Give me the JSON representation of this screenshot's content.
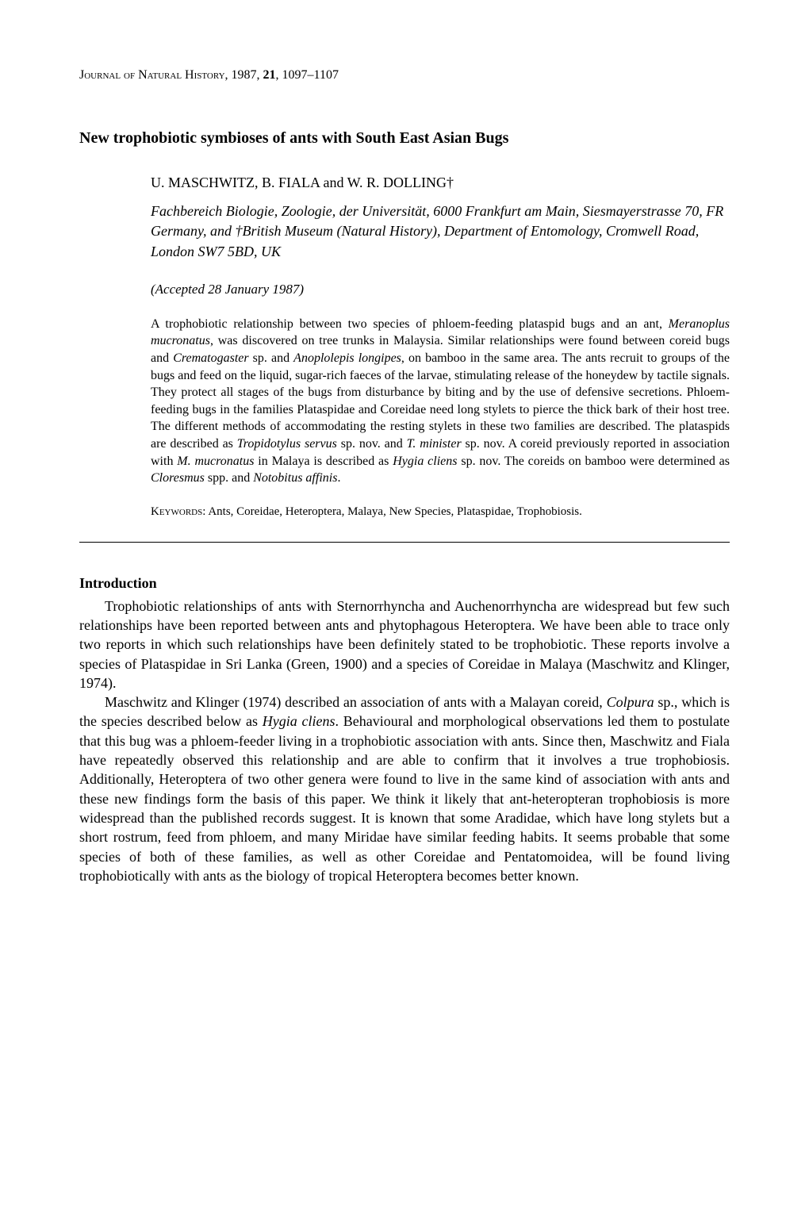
{
  "journal": {
    "name_smallcaps": "Journal of Natural History",
    "year": "1987",
    "volume": "21",
    "pages": "1097–1107"
  },
  "title": "New trophobiotic symbioses of ants with South East Asian Bugs",
  "authors": "U. MASCHWITZ, B. FIALA and W. R. DOLLING†",
  "affiliation": "Fachbereich Biologie, Zoologie, der Universität, 6000 Frankfurt am Main, Siesmayerstrasse 70, FR Germany, and †British Museum (Natural History), Department of Entomology, Cromwell Road, London SW7 5BD, UK",
  "accepted": "(Accepted 28 January 1987)",
  "abstract": "A trophobiotic relationship between two species of phloem-feeding plataspid bugs and an ant, Meranoplus mucronatus, was discovered on tree trunks in Malaysia. Similar relationships were found between coreid bugs and Crematogaster sp. and Anoplolepis longipes, on bamboo in the same area. The ants recruit to groups of the bugs and feed on the liquid, sugar-rich faeces of the larvae, stimulating release of the honeydew by tactile signals. They protect all stages of the bugs from disturbance by biting and by the use of defensive secretions. Phloem-feeding bugs in the families Plataspidae and Coreidae need long stylets to pierce the thick bark of their host tree. The different methods of accommodating the resting stylets in these two families are described. The plataspids are described as Tropidotylus servus sp. nov. and T. minister sp. nov. A coreid previously reported in association with M. mucronatus in Malaya is described as Hygia cliens sp. nov. The coreids on bamboo were determined as Cloresmus spp. and Notobitus affinis.",
  "keywords_label": "Keywords:",
  "keywords": "Ants, Coreidae, Heteroptera, Malaya, New Species, Plataspidae, Trophobiosis.",
  "section_heading": "Introduction",
  "para1": "Trophobiotic relationships of ants with Sternorrhyncha and Auchenorrhyncha are widespread but few such relationships have been reported between ants and phytophagous Heteroptera. We have been able to trace only two reports in which such relationships have been definitely stated to be trophobiotic. These reports involve a species of Plataspidae in Sri Lanka (Green, 1900) and a species of Coreidae in Malaya (Maschwitz and Klinger, 1974).",
  "para2": "Maschwitz and Klinger (1974) described an association of ants with a Malayan coreid, Colpura sp., which is the species described below as Hygia cliens. Behavioural and morphological observations led them to postulate that this bug was a phloem-feeder living in a trophobiotic association with ants. Since then, Maschwitz and Fiala have repeatedly observed this relationship and are able to confirm that it involves a true trophobiosis. Additionally, Heteroptera of two other genera were found to live in the same kind of association with ants and these new findings form the basis of this paper. We think it likely that ant-heteropteran trophobiosis is more widespread than the published records suggest. It is known that some Aradidae, which have long stylets but a short rostrum, feed from phloem, and many Miridae have similar feeding habits. It seems probable that some species of both of these families, as well as other Coreidae and Pentatomoidea, will be found living trophobiotically with ants as the biology of tropical Heteroptera becomes better known."
}
